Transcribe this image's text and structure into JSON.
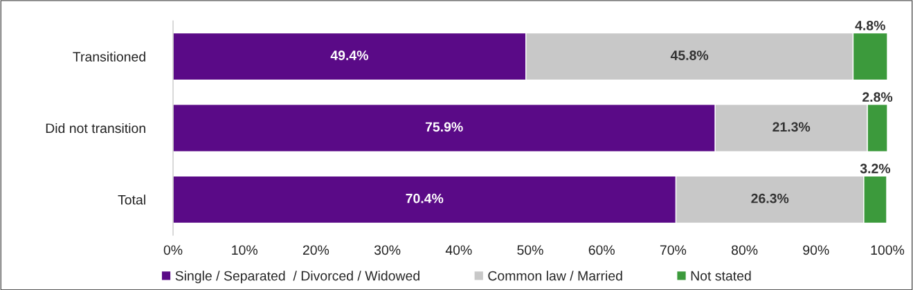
{
  "chart_data": {
    "type": "bar",
    "orientation": "horizontal",
    "stacked": true,
    "categories": [
      "Transitioned",
      "Did not transition",
      "Total"
    ],
    "series": [
      {
        "name": "Single / Separated  / Divorced / Widowed",
        "color": "#5a0a87",
        "values": [
          49.4,
          75.9,
          70.4
        ],
        "value_labels": [
          "49.4%",
          "75.9%",
          "70.4%"
        ]
      },
      {
        "name": "Common law / Married",
        "color": "#c8c8c8",
        "values": [
          45.8,
          21.3,
          26.3
        ],
        "value_labels": [
          "45.8%",
          "21.3%",
          "26.3%"
        ]
      },
      {
        "name": "Not stated",
        "color": "#3c9a3c",
        "values": [
          4.8,
          2.8,
          3.2
        ],
        "value_labels": [
          "4.8%",
          "2.8%",
          "3.2%"
        ]
      }
    ],
    "xlim": [
      0,
      100
    ],
    "xticks": [
      {
        "value": 0,
        "label": "0%"
      },
      {
        "value": 10,
        "label": "10%"
      },
      {
        "value": 20,
        "label": "20%"
      },
      {
        "value": 30,
        "label": "30%"
      },
      {
        "value": 40,
        "label": "40%"
      },
      {
        "value": 50,
        "label": "50%"
      },
      {
        "value": 60,
        "label": "60%"
      },
      {
        "value": 70,
        "label": "70%"
      },
      {
        "value": 80,
        "label": "80%"
      },
      {
        "value": 90,
        "label": "90%"
      },
      {
        "value": 100,
        "label": "100%"
      }
    ],
    "grid": false,
    "legend": "bottom"
  }
}
